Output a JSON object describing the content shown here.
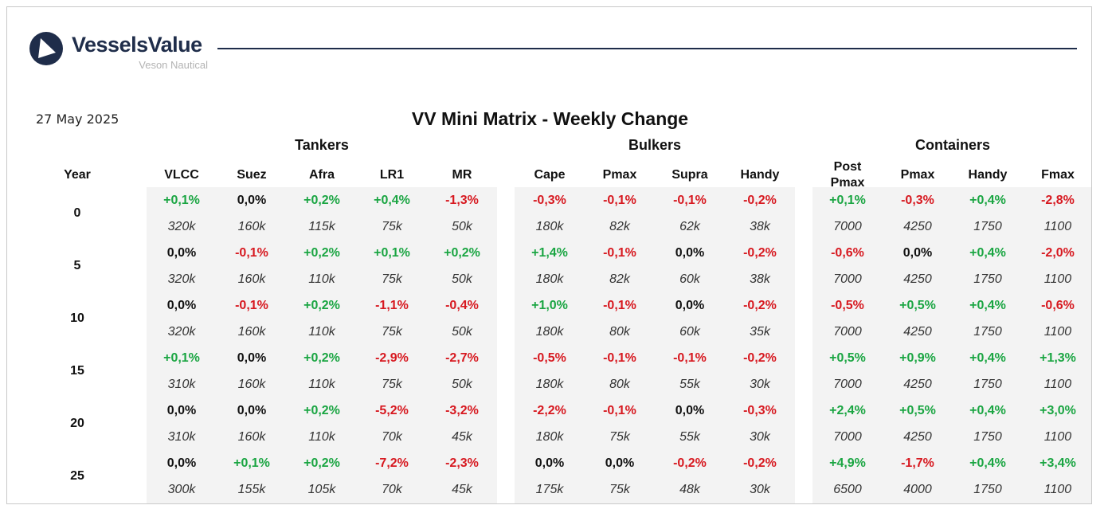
{
  "brand": {
    "name": "VesselsValue",
    "subtitle": "Veson Nautical",
    "mark_color": "#1f2d4a"
  },
  "report": {
    "date": "27 May 2025",
    "title": "VV Mini Matrix - Weekly Change"
  },
  "colors": {
    "positive": "#1aa542",
    "negative": "#d71920",
    "neutral": "#111111",
    "panel": "#f3f3f3"
  },
  "year_header": "Year",
  "groups": [
    {
      "label": "Tankers",
      "columns": [
        "VLCC",
        "Suez",
        "Afra",
        "LR1",
        "MR"
      ]
    },
    {
      "label": "Bulkers",
      "columns": [
        "Cape",
        "Pmax",
        "Supra",
        "Handy"
      ]
    },
    {
      "label": "Containers",
      "columns": [
        "Post\nPmax",
        "Pmax",
        "Handy",
        "Fmax"
      ]
    }
  ],
  "rows": [
    {
      "year": "0",
      "changes": [
        "+0,1%",
        "0,0%",
        "+0,2%",
        "+0,4%",
        "-1,3%",
        "-0,3%",
        "-0,1%",
        "-0,1%",
        "-0,2%",
        "+0,1%",
        "-0,3%",
        "+0,4%",
        "-2,8%"
      ],
      "sizes": [
        "320k",
        "160k",
        "115k",
        "75k",
        "50k",
        "180k",
        "82k",
        "62k",
        "38k",
        "7000",
        "4250",
        "1750",
        "1100"
      ]
    },
    {
      "year": "5",
      "changes": [
        "0,0%",
        "-0,1%",
        "+0,2%",
        "+0,1%",
        "+0,2%",
        "+1,4%",
        "-0,1%",
        "0,0%",
        "-0,2%",
        "-0,6%",
        "0,0%",
        "+0,4%",
        "-2,0%"
      ],
      "sizes": [
        "320k",
        "160k",
        "110k",
        "75k",
        "50k",
        "180k",
        "82k",
        "60k",
        "38k",
        "7000",
        "4250",
        "1750",
        "1100"
      ]
    },
    {
      "year": "10",
      "changes": [
        "0,0%",
        "-0,1%",
        "+0,2%",
        "-1,1%",
        "-0,4%",
        "+1,0%",
        "-0,1%",
        "0,0%",
        "-0,2%",
        "-0,5%",
        "+0,5%",
        "+0,4%",
        "-0,6%"
      ],
      "sizes": [
        "320k",
        "160k",
        "110k",
        "75k",
        "50k",
        "180k",
        "80k",
        "60k",
        "35k",
        "7000",
        "4250",
        "1750",
        "1100"
      ]
    },
    {
      "year": "15",
      "changes": [
        "+0,1%",
        "0,0%",
        "+0,2%",
        "-2,9%",
        "-2,7%",
        "-0,5%",
        "-0,1%",
        "-0,1%",
        "-0,2%",
        "+0,5%",
        "+0,9%",
        "+0,4%",
        "+1,3%"
      ],
      "sizes": [
        "310k",
        "160k",
        "110k",
        "75k",
        "50k",
        "180k",
        "80k",
        "55k",
        "30k",
        "7000",
        "4250",
        "1750",
        "1100"
      ]
    },
    {
      "year": "20",
      "changes": [
        "0,0%",
        "0,0%",
        "+0,2%",
        "-5,2%",
        "-3,2%",
        "-2,2%",
        "-0,1%",
        "0,0%",
        "-0,3%",
        "+2,4%",
        "+0,5%",
        "+0,4%",
        "+3,0%"
      ],
      "sizes": [
        "310k",
        "160k",
        "110k",
        "70k",
        "45k",
        "180k",
        "75k",
        "55k",
        "30k",
        "7000",
        "4250",
        "1750",
        "1100"
      ]
    },
    {
      "year": "25",
      "changes": [
        "0,0%",
        "+0,1%",
        "+0,2%",
        "-7,2%",
        "-2,3%",
        "0,0%",
        "0,0%",
        "-0,2%",
        "-0,2%",
        "+4,9%",
        "-1,7%",
        "+0,4%",
        "+3,4%"
      ],
      "sizes": [
        "300k",
        "155k",
        "105k",
        "70k",
        "45k",
        "175k",
        "75k",
        "48k",
        "30k",
        "6500",
        "4000",
        "1750",
        "1100"
      ]
    }
  ]
}
